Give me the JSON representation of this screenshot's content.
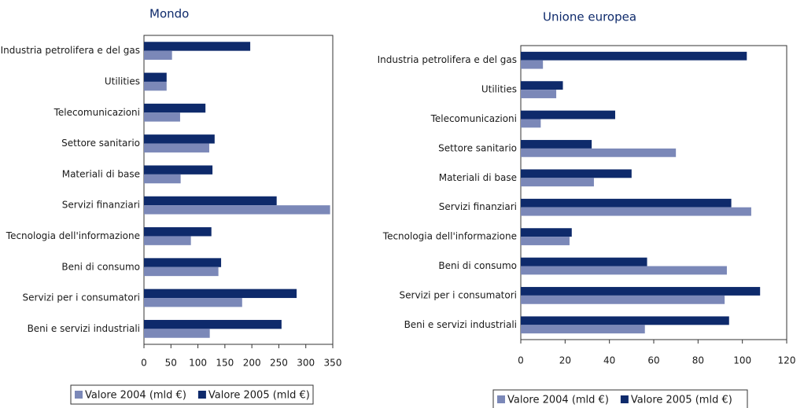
{
  "chart_data": [
    {
      "type": "bar",
      "orientation": "horizontal",
      "title": "Mondo",
      "categories": [
        "Industria petrolifera e del gas",
        "Utilities",
        "Telecomunicazioni",
        "Settore sanitario",
        "Materiali di base",
        "Servizi finanziari",
        "Tecnologia dell'informazione",
        "Beni di consumo",
        "Servizi per i consumatori",
        "Beni e servizi industriali"
      ],
      "series": [
        {
          "name": "Valore 2004 (mld €)",
          "color": "#7b88b8",
          "values": [
            52,
            42,
            67,
            121,
            68,
            345,
            87,
            138,
            182,
            122
          ]
        },
        {
          "name": "Valore 2005 (mld €)",
          "color": "#0e2a6b",
          "values": [
            197,
            42,
            114,
            131,
            127,
            246,
            125,
            143,
            283,
            255
          ]
        }
      ],
      "xlim": [
        0,
        350
      ],
      "xticks": [
        0,
        50,
        100,
        150,
        200,
        250,
        300,
        350
      ],
      "legend": "bottom"
    },
    {
      "type": "bar",
      "orientation": "horizontal",
      "title": "Unione europea",
      "categories": [
        "Industria petrolifera e del gas",
        "Utilities",
        "Telecomunicazioni",
        "Settore sanitario",
        "Materiali di base",
        "Servizi finanziari",
        "Tecnologia dell'informazione",
        "Beni di consumo",
        "Servizi per i consumatori",
        "Beni e servizi industriali"
      ],
      "series": [
        {
          "name": "Valore 2004 (mld €)",
          "color": "#7b88b8",
          "values": [
            10,
            16,
            9,
            70,
            33,
            104,
            22,
            93,
            92,
            56
          ]
        },
        {
          "name": "Valore 2005 (mld €)",
          "color": "#0e2a6b",
          "values": [
            102,
            19,
            42.6,
            32,
            50,
            95,
            23,
            57,
            108,
            94
          ]
        }
      ],
      "xlim": [
        0,
        120
      ],
      "xticks": [
        0,
        20,
        40,
        60,
        80,
        100,
        120
      ],
      "legend": "bottom"
    }
  ]
}
